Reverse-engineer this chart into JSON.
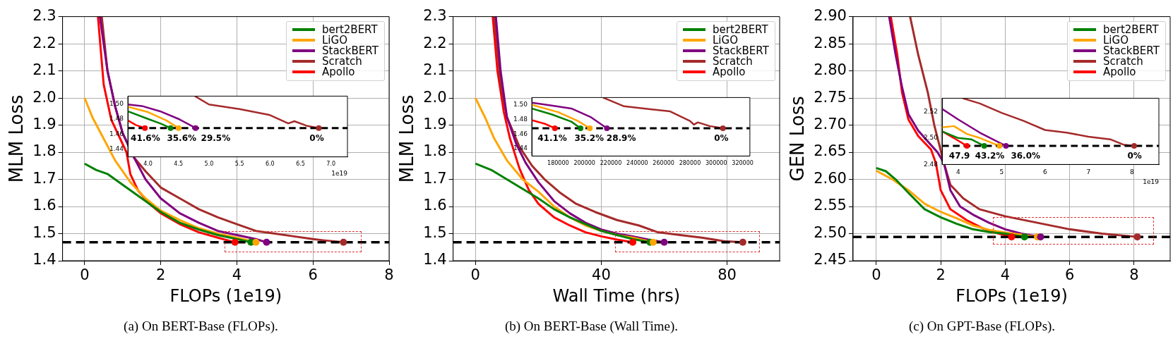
{
  "chart_data": [
    {
      "type": "line",
      "xlabel": "FLOPs (1e19)",
      "ylabel": "MLM Loss",
      "xlim": [
        -0.58,
        8
      ],
      "xticks": [
        0,
        2,
        4,
        6,
        8
      ],
      "ylim": [
        1.4,
        2.3
      ],
      "yticks": [
        1.4,
        1.5,
        1.6,
        1.7,
        1.8,
        1.9,
        {
          "value": 2,
          "label": "2.0"
        },
        2.1,
        2.2,
        2.3
      ],
      "grid": true,
      "legend": "top right",
      "annotations": [
        "(a) On BERT-Base (FLOPs)."
      ],
      "ref_lines": [
        {
          "axis": "y",
          "value": 1.468,
          "color": "#000000",
          "line_style": "dashed"
        }
      ],
      "series": [
        {
          "name": "bert2BERT",
          "color": "#008000",
          "x": [
            0,
            0.3,
            0.6,
            1.0,
            1.5,
            2,
            2.5,
            3,
            3.5,
            4,
            4.37
          ],
          "values": [
            1.758,
            1.735,
            1.72,
            1.68,
            1.63,
            1.58,
            1.54,
            1.515,
            1.495,
            1.48,
            1.468
          ]
        },
        {
          "name": "LiGO",
          "color": "#ffa500",
          "x": [
            0,
            0.2,
            0.5,
            0.8,
            1.2,
            1.6,
            2,
            2.5,
            3,
            3.5,
            4,
            4.5
          ],
          "values": [
            2.0,
            1.93,
            1.85,
            1.77,
            1.69,
            1.63,
            1.585,
            1.55,
            1.52,
            1.5,
            1.485,
            1.468
          ]
        },
        {
          "name": "StackBERT",
          "color": "#800080",
          "x": [
            0.4,
            0.6,
            0.8,
            1.0,
            1.3,
            1.6,
            2,
            2.5,
            3,
            3.5,
            4,
            4.5,
            4.78
          ],
          "values": [
            2.3,
            2.1,
            1.97,
            1.87,
            1.78,
            1.7,
            1.63,
            1.575,
            1.54,
            1.51,
            1.495,
            1.48,
            1.468
          ]
        },
        {
          "name": "Scratch",
          "color": "#a52a2a",
          "x": [
            0.45,
            0.6,
            0.8,
            1.0,
            1.3,
            1.6,
            2,
            2.5,
            3,
            3.5,
            4,
            4.5,
            5,
            5.5,
            6,
            6.3,
            6.8
          ],
          "values": [
            2.3,
            2.1,
            1.97,
            1.87,
            1.78,
            1.73,
            1.67,
            1.63,
            1.59,
            1.56,
            1.535,
            1.51,
            1.5,
            1.49,
            1.48,
            1.475,
            1.468
          ]
        },
        {
          "name": "Apollo",
          "color": "#ff0000",
          "x": [
            0.35,
            0.5,
            0.7,
            1.0,
            1.1,
            1.2,
            1.4,
            1.7,
            2,
            2.5,
            3,
            3.5,
            3.95
          ],
          "values": [
            2.3,
            2.05,
            1.92,
            1.83,
            1.8,
            1.72,
            1.66,
            1.61,
            1.575,
            1.535,
            1.505,
            1.485,
            1.468
          ]
        }
      ]
    },
    {
      "type": "line",
      "xlabel": "1e19",
      "xlim": [
        3.67,
        7.27
      ],
      "xticks": [
        {
          "value": 4,
          "label": "4.0"
        },
        4.5,
        {
          "value": 5,
          "label": "5.0"
        },
        5.5,
        {
          "value": 6,
          "label": "6.0"
        },
        6.5,
        {
          "value": 7,
          "label": "7.0"
        }
      ],
      "ylim": [
        1.43,
        1.51
      ],
      "yticks": [
        1.44,
        1.46,
        1.48,
        {
          "value": 1.5,
          "label": "1.50"
        }
      ],
      "annotations": [
        "41.6%",
        "35.6%",
        "29.5%",
        "0%"
      ],
      "ref_lines": [
        {
          "axis": "y",
          "value": 1.468,
          "color": "#000000",
          "line_style": "dashed"
        }
      ],
      "series": [
        {
          "color": "#008000",
          "x": [
            3.67,
            4.0,
            4.2,
            4.37
          ],
          "values": [
            1.49,
            1.48,
            1.474,
            1.468
          ]
        },
        {
          "color": "#ffa500",
          "x": [
            3.67,
            4.0,
            4.3,
            4.5
          ],
          "values": [
            1.496,
            1.489,
            1.478,
            1.468
          ]
        },
        {
          "color": "#800080",
          "x": [
            3.67,
            3.9,
            4.2,
            4.5,
            4.78
          ],
          "values": [
            1.499,
            1.497,
            1.49,
            1.48,
            1.468
          ]
        },
        {
          "color": "#a52a2a",
          "x": [
            4.77,
            5.0,
            5.5,
            6.0,
            6.3,
            6.4,
            6.6,
            6.8
          ],
          "values": [
            1.51,
            1.499,
            1.493,
            1.485,
            1.474,
            1.477,
            1.471,
            1.468
          ]
        },
        {
          "color": "#ff0000",
          "x": [
            3.67,
            3.8,
            3.95
          ],
          "values": [
            1.478,
            1.472,
            1.468
          ]
        }
      ]
    },
    {
      "type": "line",
      "xlabel": "Wall Time (hrs)",
      "ylabel": "MLM Loss",
      "xlim": [
        -7.1,
        96.7
      ],
      "xticks": [
        0,
        40,
        80
      ],
      "ylim": [
        1.4,
        2.3
      ],
      "yticks": [
        1.4,
        1.5,
        1.6,
        1.7,
        1.8,
        1.9,
        {
          "value": 2,
          "label": "2.0"
        },
        2.1,
        2.2,
        2.3
      ],
      "grid": true,
      "legend": "top right",
      "annotations": [
        "(b) On BERT-Base (Wall Time)."
      ],
      "ref_lines": [
        {
          "axis": "y",
          "value": 1.468,
          "color": "#000000",
          "line_style": "dashed"
        }
      ],
      "series": [
        {
          "name": "bert2BERT",
          "color": "#008000",
          "x": [
            0,
            5,
            10,
            15,
            20,
            25,
            30,
            35,
            40,
            45,
            50,
            55.5
          ],
          "values": [
            1.758,
            1.735,
            1.7,
            1.665,
            1.63,
            1.59,
            1.56,
            1.535,
            1.51,
            1.495,
            1.48,
            1.468
          ]
        },
        {
          "name": "LiGO",
          "color": "#ffa500",
          "x": [
            0,
            3,
            6,
            10,
            15,
            20,
            25,
            30,
            35,
            40,
            45,
            50,
            56.5
          ],
          "values": [
            2.0,
            1.93,
            1.85,
            1.77,
            1.7,
            1.655,
            1.6,
            1.56,
            1.53,
            1.51,
            1.495,
            1.485,
            1.468
          ]
        },
        {
          "name": "StackBERT",
          "color": "#800080",
          "x": [
            6.5,
            8,
            10,
            13,
            16,
            20,
            25,
            30,
            35,
            40,
            45,
            50,
            55,
            60
          ],
          "values": [
            2.3,
            2.1,
            1.93,
            1.83,
            1.76,
            1.69,
            1.62,
            1.575,
            1.54,
            1.515,
            1.5,
            1.49,
            1.478,
            1.468
          ]
        },
        {
          "name": "Scratch",
          "color": "#a52a2a",
          "x": [
            6,
            8,
            10,
            14,
            18,
            22,
            27,
            32,
            38,
            45,
            52,
            58,
            65,
            72,
            79,
            85
          ],
          "values": [
            2.3,
            2.05,
            1.93,
            1.82,
            1.75,
            1.7,
            1.65,
            1.61,
            1.58,
            1.55,
            1.53,
            1.505,
            1.495,
            1.485,
            1.472,
            1.468
          ]
        },
        {
          "name": "Apollo",
          "color": "#ff0000",
          "x": [
            5.5,
            7,
            9,
            11,
            14,
            17,
            20,
            25,
            30,
            35,
            40,
            45,
            50
          ],
          "values": [
            2.3,
            2.1,
            1.95,
            1.85,
            1.74,
            1.66,
            1.61,
            1.56,
            1.53,
            1.505,
            1.49,
            1.478,
            1.468
          ]
        }
      ]
    },
    {
      "type": "line",
      "xlim": [
        160000,
        325500
      ],
      "xticks": [
        180000,
        200000,
        220000,
        240000,
        260000,
        280000,
        300000,
        320000
      ],
      "ylim": [
        1.43,
        1.51
      ],
      "yticks": [
        1.44,
        1.46,
        1.48,
        {
          "value": 1.5,
          "label": "1.50"
        }
      ],
      "annotations": [
        "41.1%",
        "35.2%",
        "28.9%",
        "0%"
      ],
      "ref_lines": [
        {
          "axis": "y",
          "value": 1.468,
          "color": "#000000",
          "line_style": "dashed"
        }
      ],
      "series": [
        {
          "color": "#008000",
          "x": [
            160000,
            175000,
            190000,
            197000
          ],
          "values": [
            1.495,
            1.487,
            1.477,
            1.468
          ]
        },
        {
          "color": "#ffa500",
          "x": [
            160000,
            180000,
            195000,
            204000
          ],
          "values": [
            1.5,
            1.49,
            1.478,
            1.468
          ]
        },
        {
          "color": "#800080",
          "x": [
            160000,
            175000,
            190000,
            205000,
            217000
          ],
          "values": [
            1.503,
            1.499,
            1.495,
            1.483,
            1.468
          ]
        },
        {
          "color": "#a52a2a",
          "x": [
            214000,
            230000,
            250000,
            265000,
            280000,
            283000,
            286000,
            295000,
            305000
          ],
          "values": [
            1.51,
            1.498,
            1.494,
            1.491,
            1.478,
            1.473,
            1.476,
            1.471,
            1.468
          ]
        },
        {
          "color": "#ff0000",
          "x": [
            160000,
            170000,
            177500
          ],
          "values": [
            1.479,
            1.474,
            1.468
          ]
        }
      ]
    },
    {
      "type": "line",
      "xlabel": "FLOPs (1e19)",
      "ylabel": "GEN Loss",
      "xlim": [
        -0.72,
        9.12
      ],
      "xticks": [
        0,
        2,
        4,
        6,
        8
      ],
      "ylim": [
        2.45,
        2.9
      ],
      "yticks": [
        2.45,
        {
          "value": 2.5,
          "label": "2.50"
        },
        2.55,
        {
          "value": 2.6,
          "label": "2.60"
        },
        2.65,
        {
          "value": 2.7,
          "label": "2.70"
        },
        2.75,
        {
          "value": 2.8,
          "label": "2.80"
        },
        2.85,
        {
          "value": 2.9,
          "label": "2.90"
        }
      ],
      "grid": true,
      "legend": "top right",
      "annotations": [
        "(c) On GPT-Base (FLOPs)."
      ],
      "ref_lines": [
        {
          "axis": "y",
          "value": 2.494,
          "color": "#000000",
          "line_style": "dashed"
        }
      ],
      "series": [
        {
          "name": "bert2BERT",
          "color": "#008000",
          "x": [
            0,
            0.3,
            0.6,
            1,
            1.5,
            2,
            2.5,
            3,
            3.5,
            4,
            4.6
          ],
          "values": [
            2.621,
            2.615,
            2.6,
            2.575,
            2.545,
            2.53,
            2.518,
            2.508,
            2.503,
            2.5,
            2.494
          ]
        },
        {
          "name": "LiGO",
          "color": "#ffa500",
          "x": [
            0,
            0.5,
            1,
            1.5,
            2,
            2.5,
            3,
            3.5,
            4,
            4.5,
            5.0
          ],
          "values": [
            2.616,
            2.6,
            2.58,
            2.555,
            2.54,
            2.528,
            2.515,
            2.507,
            2.502,
            2.498,
            2.494
          ]
        },
        {
          "name": "StackBERT",
          "color": "#800080",
          "x": [
            0.4,
            0.6,
            0.8,
            1.0,
            1.3,
            1.6,
            1.9,
            2.1,
            2.3,
            2.6,
            3,
            3.5,
            4,
            4.5,
            5.1
          ],
          "values": [
            2.9,
            2.83,
            2.77,
            2.72,
            2.69,
            2.67,
            2.65,
            2.63,
            2.58,
            2.55,
            2.535,
            2.52,
            2.508,
            2.5,
            2.494
          ]
        },
        {
          "name": "Scratch",
          "color": "#a52a2a",
          "x": [
            1.05,
            1.3,
            1.6,
            1.8,
            2.1,
            2.3,
            2.7,
            3.2,
            4,
            5,
            6,
            7,
            8.1
          ],
          "values": [
            2.9,
            2.83,
            2.76,
            2.7,
            2.63,
            2.59,
            2.565,
            2.545,
            2.532,
            2.52,
            2.508,
            2.5,
            2.494
          ]
        },
        {
          "name": "Apollo",
          "color": "#ff0000",
          "x": [
            0.45,
            0.65,
            0.8,
            1.0,
            1.3,
            1.7,
            1.85,
            2.0,
            2.3,
            2.8,
            3.3,
            3.8,
            4.2
          ],
          "values": [
            2.9,
            2.83,
            2.76,
            2.71,
            2.68,
            2.655,
            2.63,
            2.58,
            2.545,
            2.525,
            2.51,
            2.5,
            2.494
          ]
        }
      ]
    },
    {
      "type": "line",
      "xlabel": "1e19",
      "xlim": [
        3.63,
        8.62
      ],
      "xticks": [
        4,
        5,
        6,
        7,
        8
      ],
      "ylim": [
        2.48,
        2.53
      ],
      "yticks": [
        2.48,
        {
          "value": 2.5,
          "label": "2.50"
        },
        2.52
      ],
      "annotations": [
        "47.9",
        "43.2%",
        "36.0%",
        "0%"
      ],
      "ref_lines": [
        {
          "axis": "y",
          "value": 2.494,
          "color": "#000000",
          "line_style": "dashed"
        }
      ],
      "series": [
        {
          "color": "#008000",
          "x": [
            3.63,
            4.0,
            4.3,
            4.6
          ],
          "values": [
            2.505,
            2.5,
            2.499,
            2.494
          ]
        },
        {
          "color": "#ffa500",
          "x": [
            3.63,
            3.9,
            4.2,
            4.5,
            4.95
          ],
          "values": [
            2.508,
            2.509,
            2.503,
            2.5,
            2.494
          ]
        },
        {
          "color": "#800080",
          "x": [
            3.63,
            4.0,
            4.5,
            5.1
          ],
          "values": [
            2.522,
            2.514,
            2.504,
            2.494
          ]
        },
        {
          "color": "#a52a2a",
          "x": [
            4.1,
            4.5,
            5,
            5.5,
            6,
            6.5,
            7,
            7.5,
            7.8,
            8.05
          ],
          "values": [
            2.53,
            2.526,
            2.519,
            2.513,
            2.506,
            2.504,
            2.501,
            2.499,
            2.495,
            2.494
          ]
        },
        {
          "color": "#ff0000",
          "x": [
            3.63,
            3.9,
            4.2
          ],
          "values": [
            2.505,
            2.5,
            2.494
          ]
        }
      ]
    }
  ]
}
